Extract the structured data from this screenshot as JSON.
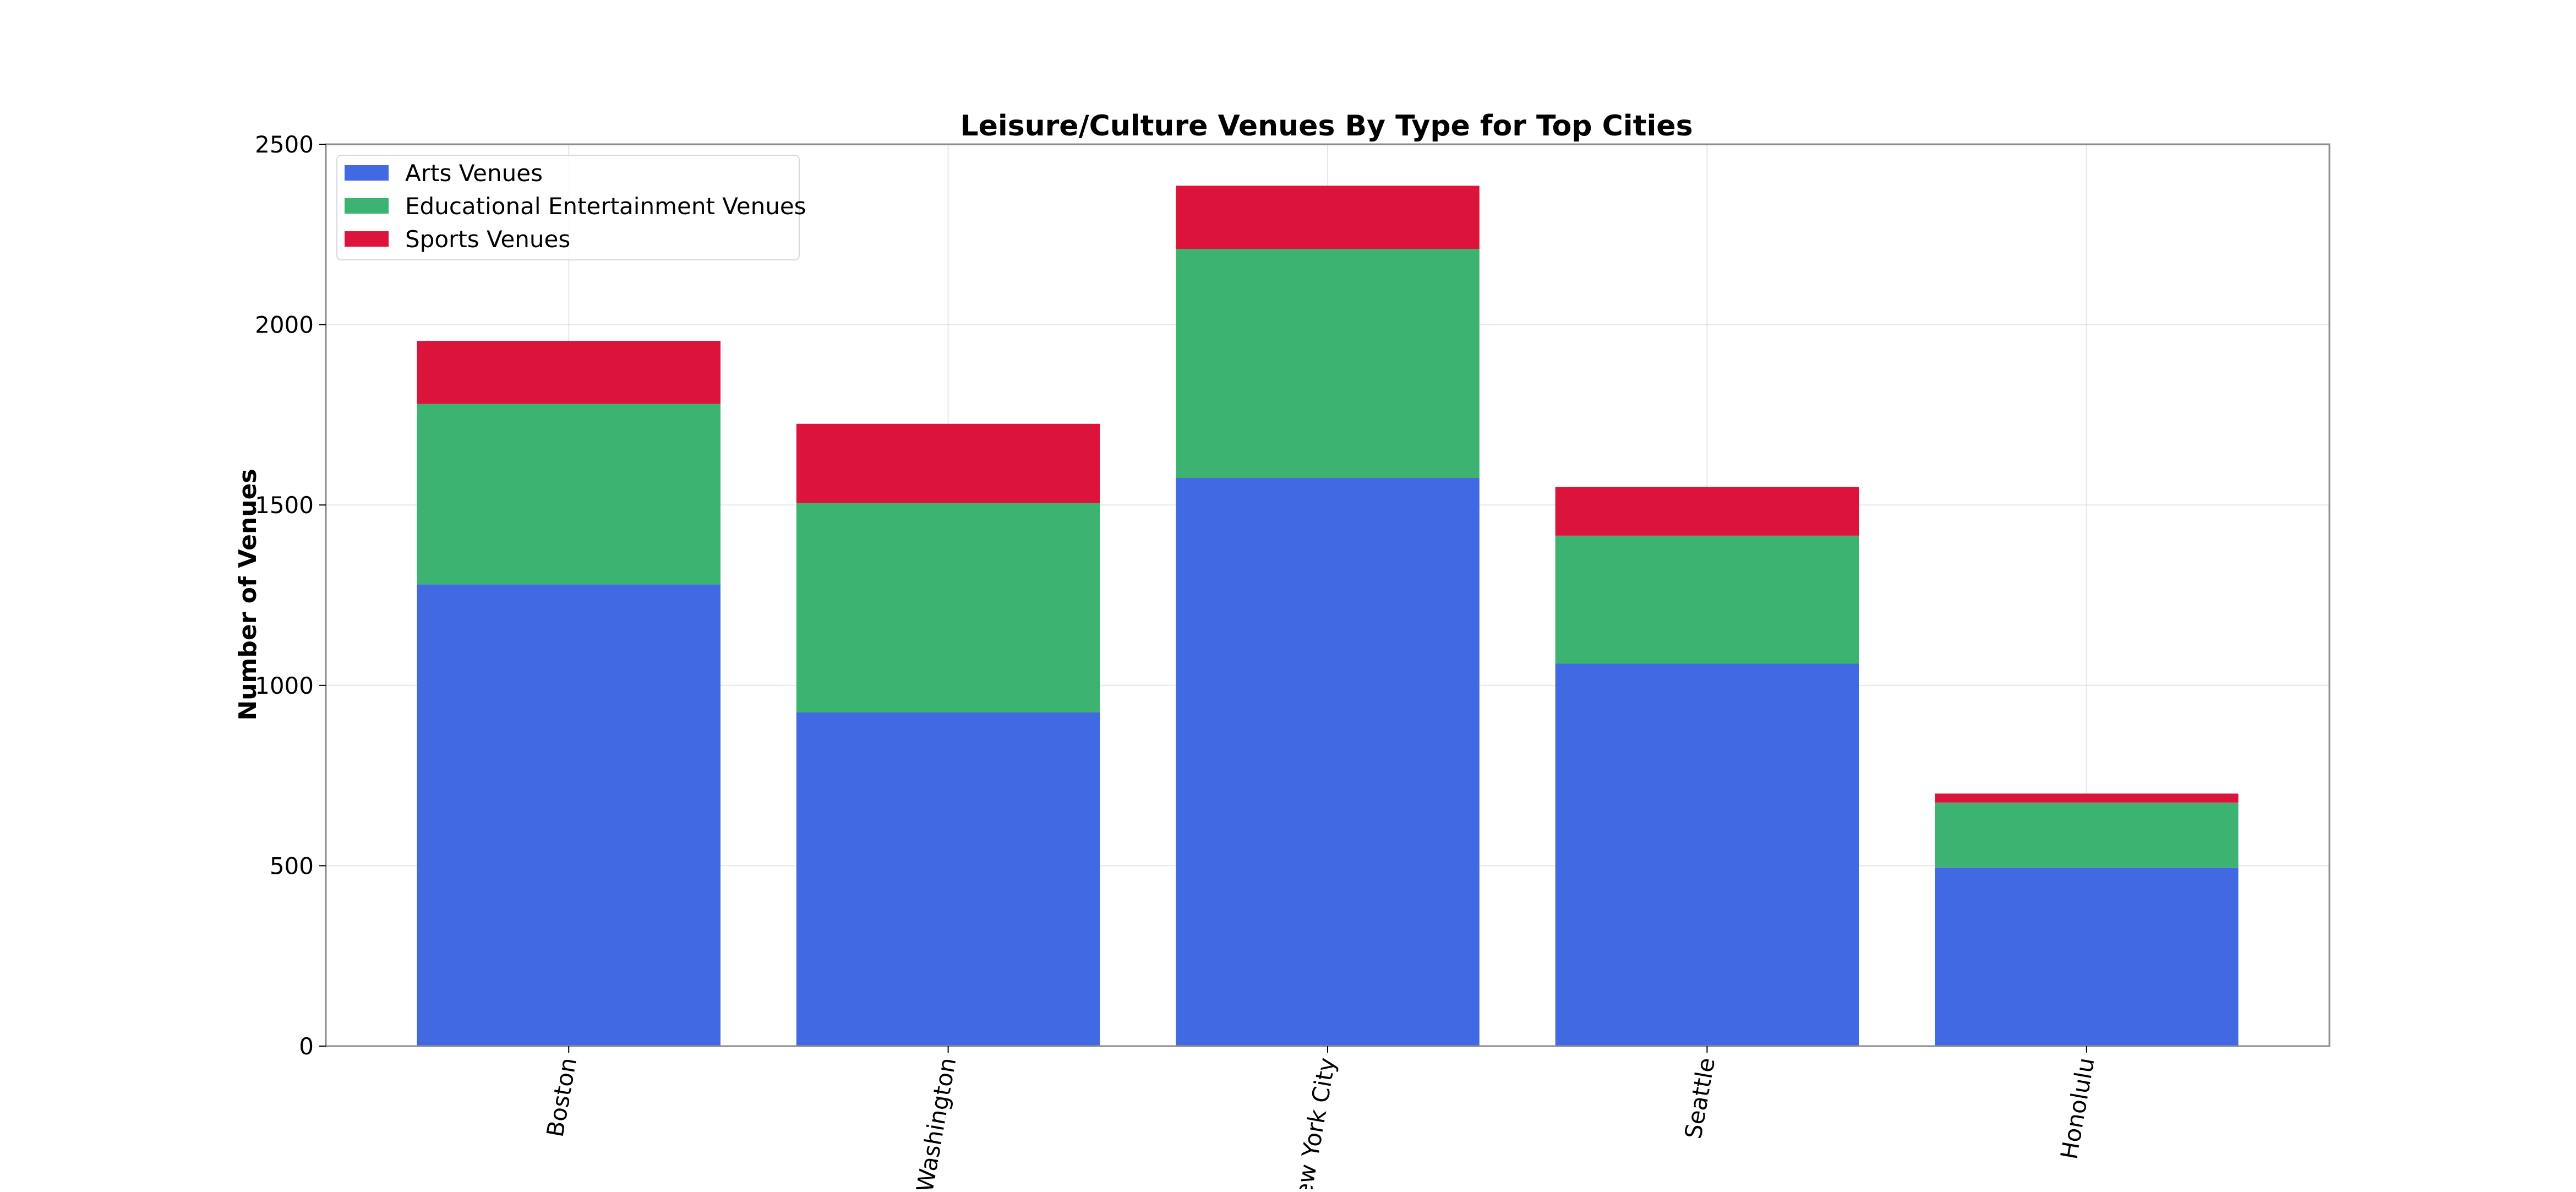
{
  "chart_data": {
    "type": "bar",
    "stacked": true,
    "title": "Leisure/Culture Venues By Type for Top Cities",
    "xlabel": "",
    "ylabel": "Number of Venues",
    "categories": [
      "Boston",
      "Washington",
      "New York City",
      "Seattle",
      "Honolulu"
    ],
    "series": [
      {
        "name": "Arts Venues",
        "color": "#4169E1",
        "values": [
          1280,
          925,
          1575,
          1060,
          495
        ]
      },
      {
        "name": "Educational Entertainment Venues",
        "color": "#3CB371",
        "values": [
          500,
          580,
          635,
          355,
          180
        ]
      },
      {
        "name": "Sports Venues",
        "color": "#DC143C",
        "values": [
          175,
          220,
          175,
          135,
          25
        ]
      }
    ],
    "ylim": [
      0,
      2500
    ],
    "yticks": [
      0,
      500,
      1000,
      1500,
      2000,
      2500
    ],
    "grid": true,
    "legend_position": "top-left"
  }
}
